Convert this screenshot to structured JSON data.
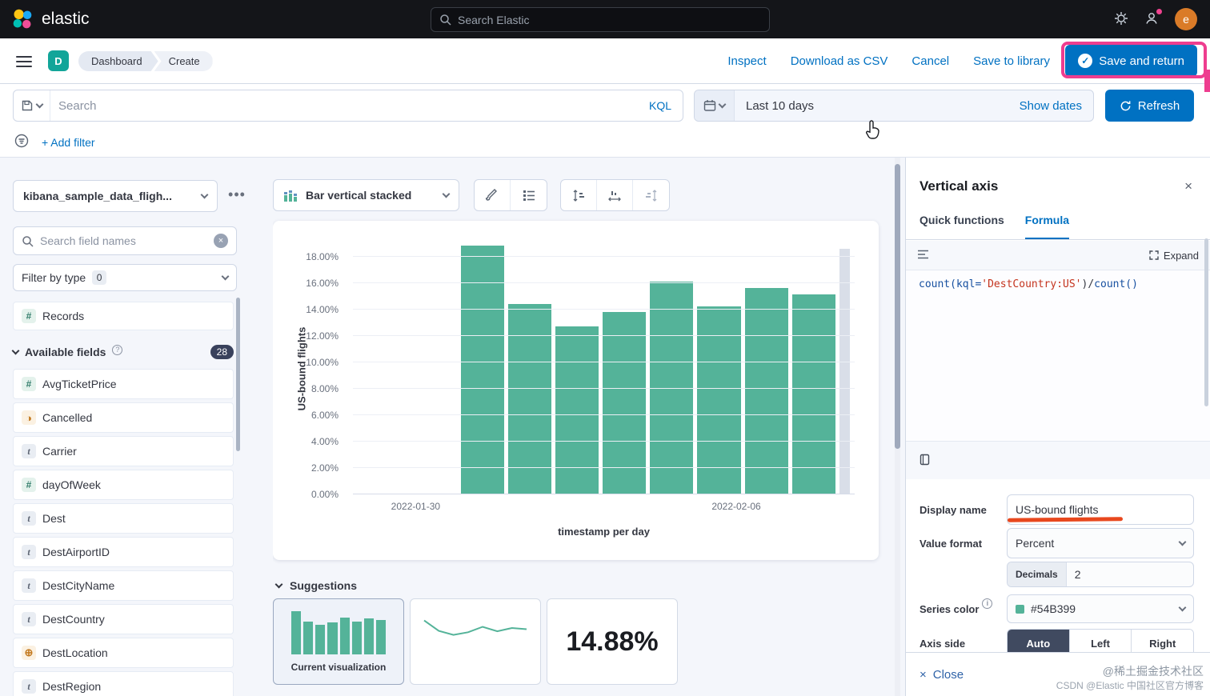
{
  "topbar": {
    "logo": "elastic",
    "search_placeholder": "Search Elastic",
    "avatar": "e"
  },
  "navbar": {
    "space_badge": "D",
    "breadcrumbs": [
      "Dashboard",
      "Create"
    ],
    "actions": [
      "Inspect",
      "Download as CSV",
      "Cancel",
      "Save to library"
    ],
    "save_button": "Save and return"
  },
  "querybar": {
    "search_placeholder": "Search",
    "kql_label": "KQL",
    "date_range": "Last 10 days",
    "show_dates": "Show dates",
    "refresh": "Refresh"
  },
  "filterbar": {
    "add_filter": "+ Add filter"
  },
  "sidebar": {
    "index_pattern": "kibana_sample_data_fligh...",
    "search_placeholder": "Search field names",
    "filter_by_type": "Filter by type",
    "filter_count": "0",
    "records": "Records",
    "available_fields": "Available fields",
    "available_count": "28",
    "fields": [
      {
        "name": "AvgTicketPrice",
        "type": "number"
      },
      {
        "name": "Cancelled",
        "type": "boolean"
      },
      {
        "name": "Carrier",
        "type": "string"
      },
      {
        "name": "dayOfWeek",
        "type": "number"
      },
      {
        "name": "Dest",
        "type": "string"
      },
      {
        "name": "DestAirportID",
        "type": "string"
      },
      {
        "name": "DestCityName",
        "type": "string"
      },
      {
        "name": "DestCountry",
        "type": "string"
      },
      {
        "name": "DestLocation",
        "type": "geo"
      },
      {
        "name": "DestRegion",
        "type": "string"
      }
    ]
  },
  "toolbar": {
    "chart_type": "Bar vertical stacked"
  },
  "chart_data": {
    "type": "bar",
    "series_name": "US-bound flights",
    "xlabel": "timestamp per day",
    "ylabel": "US-bound flights",
    "ylim": [
      0,
      19
    ],
    "grid": true,
    "legend": "none",
    "bar_color": "#54B399",
    "partial_bucket_color": "#d9dee8",
    "y_tick_values": [
      0,
      2,
      4,
      6,
      8,
      10,
      12,
      14,
      16,
      18
    ],
    "y_tick_labels": [
      "0.00%",
      "2.00%",
      "4.00%",
      "6.00%",
      "8.00%",
      "10.00%",
      "12.00%",
      "14.00%",
      "16.00%",
      "18.00%"
    ],
    "values": [
      18.8,
      14.4,
      12.7,
      13.8,
      16.1,
      14.2,
      15.6,
      15.1
    ],
    "partial_bucket_value": 18.6,
    "x_ticks": [
      {
        "label": "2022-01-30",
        "pos": 12.5
      },
      {
        "label": "2022-02-06",
        "pos": 76.4
      }
    ]
  },
  "suggestions": {
    "title": "Suggestions",
    "current_label": "Current visualization",
    "metric_value": "14.88%"
  },
  "panel": {
    "title": "Vertical axis",
    "tabs": [
      "Quick functions",
      "Formula"
    ],
    "active_tab": "Formula",
    "expand": "Expand",
    "formula": "count(kql='DestCountry:US')/count()",
    "formula_tokens": [
      {
        "text": "count(",
        "color": "#1750a0"
      },
      {
        "text": "kql=",
        "color": "#1750a0"
      },
      {
        "text": "'DestCountry:US'",
        "color": "#c4331d"
      },
      {
        "text": ")",
        "color": "#343741"
      },
      {
        "text": "/",
        "color": "#343741"
      },
      {
        "text": "count()",
        "color": "#1750a0"
      }
    ],
    "display_name_label": "Display name",
    "display_name_value": "US-bound flights",
    "value_format_label": "Value format",
    "value_format_value": "Percent",
    "decimals_label": "Decimals",
    "decimals_value": "2",
    "series_color_label": "Series color",
    "series_color_value": "#54B399",
    "axis_side_label": "Axis side",
    "axis_side_options": [
      "Auto",
      "Left",
      "Right"
    ],
    "axis_side_selected": "Auto",
    "close": "Close"
  },
  "watermark": {
    "line1": "@稀土掘金技术社区",
    "line2": "CSDN @Elastic 中国社区官方博客"
  }
}
